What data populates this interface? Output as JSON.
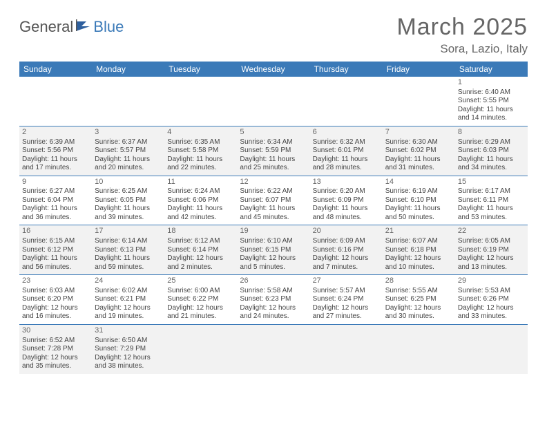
{
  "brand": {
    "part1": "General",
    "part2": "Blue"
  },
  "title": "March 2025",
  "location": "Sora, Lazio, Italy",
  "colors": {
    "header_bg": "#3b7ab8",
    "header_text": "#ffffff",
    "alt_row_bg": "#f2f2f2",
    "text": "#444444",
    "title_text": "#666666"
  },
  "weekdays": [
    "Sunday",
    "Monday",
    "Tuesday",
    "Wednesday",
    "Thursday",
    "Friday",
    "Saturday"
  ],
  "weeks": [
    [
      null,
      null,
      null,
      null,
      null,
      null,
      {
        "d": "1",
        "sr": "Sunrise: 6:40 AM",
        "ss": "Sunset: 5:55 PM",
        "dl1": "Daylight: 11 hours",
        "dl2": "and 14 minutes."
      }
    ],
    [
      {
        "d": "2",
        "sr": "Sunrise: 6:39 AM",
        "ss": "Sunset: 5:56 PM",
        "dl1": "Daylight: 11 hours",
        "dl2": "and 17 minutes."
      },
      {
        "d": "3",
        "sr": "Sunrise: 6:37 AM",
        "ss": "Sunset: 5:57 PM",
        "dl1": "Daylight: 11 hours",
        "dl2": "and 20 minutes."
      },
      {
        "d": "4",
        "sr": "Sunrise: 6:35 AM",
        "ss": "Sunset: 5:58 PM",
        "dl1": "Daylight: 11 hours",
        "dl2": "and 22 minutes."
      },
      {
        "d": "5",
        "sr": "Sunrise: 6:34 AM",
        "ss": "Sunset: 5:59 PM",
        "dl1": "Daylight: 11 hours",
        "dl2": "and 25 minutes."
      },
      {
        "d": "6",
        "sr": "Sunrise: 6:32 AM",
        "ss": "Sunset: 6:01 PM",
        "dl1": "Daylight: 11 hours",
        "dl2": "and 28 minutes."
      },
      {
        "d": "7",
        "sr": "Sunrise: 6:30 AM",
        "ss": "Sunset: 6:02 PM",
        "dl1": "Daylight: 11 hours",
        "dl2": "and 31 minutes."
      },
      {
        "d": "8",
        "sr": "Sunrise: 6:29 AM",
        "ss": "Sunset: 6:03 PM",
        "dl1": "Daylight: 11 hours",
        "dl2": "and 34 minutes."
      }
    ],
    [
      {
        "d": "9",
        "sr": "Sunrise: 6:27 AM",
        "ss": "Sunset: 6:04 PM",
        "dl1": "Daylight: 11 hours",
        "dl2": "and 36 minutes."
      },
      {
        "d": "10",
        "sr": "Sunrise: 6:25 AM",
        "ss": "Sunset: 6:05 PM",
        "dl1": "Daylight: 11 hours",
        "dl2": "and 39 minutes."
      },
      {
        "d": "11",
        "sr": "Sunrise: 6:24 AM",
        "ss": "Sunset: 6:06 PM",
        "dl1": "Daylight: 11 hours",
        "dl2": "and 42 minutes."
      },
      {
        "d": "12",
        "sr": "Sunrise: 6:22 AM",
        "ss": "Sunset: 6:07 PM",
        "dl1": "Daylight: 11 hours",
        "dl2": "and 45 minutes."
      },
      {
        "d": "13",
        "sr": "Sunrise: 6:20 AM",
        "ss": "Sunset: 6:09 PM",
        "dl1": "Daylight: 11 hours",
        "dl2": "and 48 minutes."
      },
      {
        "d": "14",
        "sr": "Sunrise: 6:19 AM",
        "ss": "Sunset: 6:10 PM",
        "dl1": "Daylight: 11 hours",
        "dl2": "and 50 minutes."
      },
      {
        "d": "15",
        "sr": "Sunrise: 6:17 AM",
        "ss": "Sunset: 6:11 PM",
        "dl1": "Daylight: 11 hours",
        "dl2": "and 53 minutes."
      }
    ],
    [
      {
        "d": "16",
        "sr": "Sunrise: 6:15 AM",
        "ss": "Sunset: 6:12 PM",
        "dl1": "Daylight: 11 hours",
        "dl2": "and 56 minutes."
      },
      {
        "d": "17",
        "sr": "Sunrise: 6:14 AM",
        "ss": "Sunset: 6:13 PM",
        "dl1": "Daylight: 11 hours",
        "dl2": "and 59 minutes."
      },
      {
        "d": "18",
        "sr": "Sunrise: 6:12 AM",
        "ss": "Sunset: 6:14 PM",
        "dl1": "Daylight: 12 hours",
        "dl2": "and 2 minutes."
      },
      {
        "d": "19",
        "sr": "Sunrise: 6:10 AM",
        "ss": "Sunset: 6:15 PM",
        "dl1": "Daylight: 12 hours",
        "dl2": "and 5 minutes."
      },
      {
        "d": "20",
        "sr": "Sunrise: 6:09 AM",
        "ss": "Sunset: 6:16 PM",
        "dl1": "Daylight: 12 hours",
        "dl2": "and 7 minutes."
      },
      {
        "d": "21",
        "sr": "Sunrise: 6:07 AM",
        "ss": "Sunset: 6:18 PM",
        "dl1": "Daylight: 12 hours",
        "dl2": "and 10 minutes."
      },
      {
        "d": "22",
        "sr": "Sunrise: 6:05 AM",
        "ss": "Sunset: 6:19 PM",
        "dl1": "Daylight: 12 hours",
        "dl2": "and 13 minutes."
      }
    ],
    [
      {
        "d": "23",
        "sr": "Sunrise: 6:03 AM",
        "ss": "Sunset: 6:20 PM",
        "dl1": "Daylight: 12 hours",
        "dl2": "and 16 minutes."
      },
      {
        "d": "24",
        "sr": "Sunrise: 6:02 AM",
        "ss": "Sunset: 6:21 PM",
        "dl1": "Daylight: 12 hours",
        "dl2": "and 19 minutes."
      },
      {
        "d": "25",
        "sr": "Sunrise: 6:00 AM",
        "ss": "Sunset: 6:22 PM",
        "dl1": "Daylight: 12 hours",
        "dl2": "and 21 minutes."
      },
      {
        "d": "26",
        "sr": "Sunrise: 5:58 AM",
        "ss": "Sunset: 6:23 PM",
        "dl1": "Daylight: 12 hours",
        "dl2": "and 24 minutes."
      },
      {
        "d": "27",
        "sr": "Sunrise: 5:57 AM",
        "ss": "Sunset: 6:24 PM",
        "dl1": "Daylight: 12 hours",
        "dl2": "and 27 minutes."
      },
      {
        "d": "28",
        "sr": "Sunrise: 5:55 AM",
        "ss": "Sunset: 6:25 PM",
        "dl1": "Daylight: 12 hours",
        "dl2": "and 30 minutes."
      },
      {
        "d": "29",
        "sr": "Sunrise: 5:53 AM",
        "ss": "Sunset: 6:26 PM",
        "dl1": "Daylight: 12 hours",
        "dl2": "and 33 minutes."
      }
    ],
    [
      {
        "d": "30",
        "sr": "Sunrise: 6:52 AM",
        "ss": "Sunset: 7:28 PM",
        "dl1": "Daylight: 12 hours",
        "dl2": "and 35 minutes."
      },
      {
        "d": "31",
        "sr": "Sunrise: 6:50 AM",
        "ss": "Sunset: 7:29 PM",
        "dl1": "Daylight: 12 hours",
        "dl2": "and 38 minutes."
      },
      null,
      null,
      null,
      null,
      null
    ]
  ]
}
